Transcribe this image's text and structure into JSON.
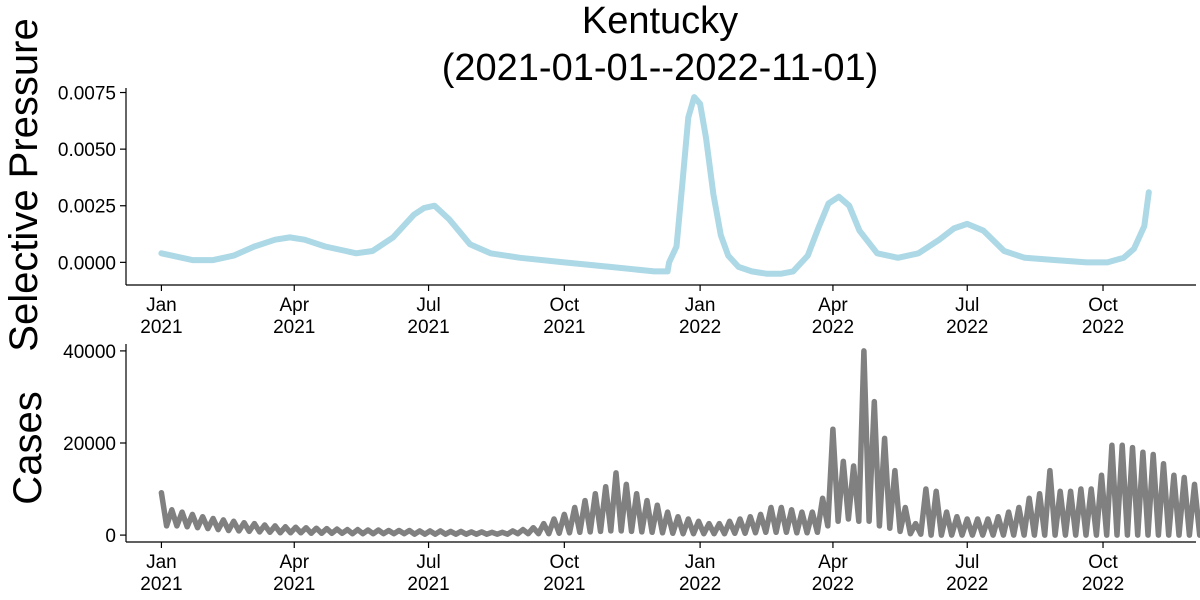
{
  "chart_data": [
    {
      "type": "line",
      "title": "Kentucky",
      "subtitle": "(2021-01-01--2022-11-01)",
      "xlabel": "",
      "ylabel": "Selective Pressure",
      "ylim": [
        -0.001,
        0.0077
      ],
      "xlim": [
        "2020-12-08",
        "2022-12-03"
      ],
      "yticks": [
        "0.0000",
        "0.0025",
        "0.0050",
        "0.0075"
      ],
      "xticks": [
        {
          "date": "2021-01-01",
          "line1": "Jan",
          "line2": "2021"
        },
        {
          "date": "2021-04-01",
          "line1": "Apr",
          "line2": "2021"
        },
        {
          "date": "2021-07-01",
          "line1": "Jul",
          "line2": "2021"
        },
        {
          "date": "2021-10-01",
          "line1": "Oct",
          "line2": "2021"
        },
        {
          "date": "2022-01-01",
          "line1": "Jan",
          "line2": "2022"
        },
        {
          "date": "2022-04-01",
          "line1": "Apr",
          "line2": "2022"
        },
        {
          "date": "2022-07-01",
          "line1": "Jul",
          "line2": "2022"
        },
        {
          "date": "2022-10-01",
          "line1": "Oct",
          "line2": "2022"
        }
      ],
      "color": "#add8e6",
      "grid": false,
      "series": [
        {
          "x": [
            "2021-01-01",
            "2021-01-08",
            "2021-01-22",
            "2021-02-05",
            "2021-02-19",
            "2021-03-05",
            "2021-03-19",
            "2021-03-29",
            "2021-04-08",
            "2021-04-22",
            "2021-05-06",
            "2021-05-13",
            "2021-05-24",
            "2021-06-07",
            "2021-06-21",
            "2021-06-28",
            "2021-07-05",
            "2021-07-15",
            "2021-07-29",
            "2021-08-12",
            "2021-09-01",
            "2021-10-01",
            "2021-11-01",
            "2021-12-01",
            "2021-12-10",
            "2021-12-11",
            "2021-12-16",
            "2021-12-20",
            "2021-12-24",
            "2021-12-28",
            "2022-01-01",
            "2022-01-05",
            "2022-01-10",
            "2022-01-15",
            "2022-01-20",
            "2022-01-27",
            "2022-02-05",
            "2022-02-15",
            "2022-02-25",
            "2022-03-05",
            "2022-03-15",
            "2022-03-22",
            "2022-03-29",
            "2022-04-05",
            "2022-04-12",
            "2022-04-19",
            "2022-05-01",
            "2022-05-15",
            "2022-05-29",
            "2022-06-12",
            "2022-06-22",
            "2022-07-01",
            "2022-07-12",
            "2022-07-26",
            "2022-08-09",
            "2022-08-30",
            "2022-09-20",
            "2022-10-04",
            "2022-10-15",
            "2022-10-22",
            "2022-10-29",
            "2022-11-01"
          ],
          "y": [
            0.0004,
            0.0003,
            0.0001,
            0.0001,
            0.0003,
            0.0007,
            0.001,
            0.0011,
            0.001,
            0.0007,
            0.0005,
            0.0004,
            0.0005,
            0.0011,
            0.0021,
            0.0024,
            0.0025,
            0.0019,
            0.0008,
            0.0004,
            0.0002,
            0.0,
            -0.0002,
            -0.0004,
            -0.0004,
            0.0,
            0.0007,
            0.0035,
            0.0064,
            0.0073,
            0.007,
            0.0055,
            0.003,
            0.0012,
            0.0003,
            -0.0002,
            -0.0004,
            -0.0005,
            -0.0005,
            -0.0004,
            0.0003,
            0.0015,
            0.0026,
            0.0029,
            0.0025,
            0.0014,
            0.0004,
            0.0002,
            0.0004,
            0.001,
            0.0015,
            0.0017,
            0.0014,
            0.0005,
            0.0002,
            0.0001,
            0.0,
            0.0,
            0.0002,
            0.0006,
            0.0016,
            0.0031
          ]
        }
      ]
    },
    {
      "type": "line",
      "title": "",
      "xlabel": "",
      "ylabel": "Cases",
      "ylim": [
        -1500,
        41500
      ],
      "xlim": [
        "2020-12-08",
        "2022-12-03"
      ],
      "yticks": [
        "0",
        "20000",
        "40000"
      ],
      "xticks": [
        {
          "date": "2021-01-01",
          "line1": "Jan",
          "line2": "2021"
        },
        {
          "date": "2021-04-01",
          "line1": "Apr",
          "line2": "2021"
        },
        {
          "date": "2021-07-01",
          "line1": "Jul",
          "line2": "2021"
        },
        {
          "date": "2021-10-01",
          "line1": "Oct",
          "line2": "2021"
        },
        {
          "date": "2022-01-01",
          "line1": "Jan",
          "line2": "2022"
        },
        {
          "date": "2022-04-01",
          "line1": "Apr",
          "line2": "2022"
        },
        {
          "date": "2022-07-01",
          "line1": "Jul",
          "line2": "2022"
        },
        {
          "date": "2022-10-01",
          "line1": "Oct",
          "line2": "2022"
        }
      ],
      "color": "#808080",
      "grid": false,
      "series": [
        {
          "start_date": "2021-01-01",
          "frequency": "weekly",
          "peaks": [
            9200,
            5500,
            5000,
            4500,
            4000,
            3600,
            3300,
            3000,
            2700,
            2500,
            2200,
            2000,
            1800,
            1700,
            1600,
            1500,
            1400,
            1300,
            1200,
            1200,
            1100,
            1100,
            1000,
            1000,
            1000,
            900,
            900,
            900,
            800,
            800,
            700,
            700,
            600,
            600,
            900,
            1200,
            1600,
            2500,
            3500,
            4500,
            6000,
            7500,
            9000,
            10500,
            13500,
            11000,
            9000,
            7500,
            6500,
            5000,
            4000,
            3500,
            3000,
            2500,
            2500,
            3000,
            3500,
            4000,
            4500,
            6000,
            6000,
            5500,
            5000,
            5000,
            8000,
            23000,
            16000,
            15000,
            40000,
            29000,
            21000,
            14000,
            6000,
            2500,
            10000,
            9500,
            5000,
            4000,
            3500,
            3500,
            3500,
            4000,
            5000,
            6000,
            8000,
            9000,
            14000,
            9500,
            9500,
            10000,
            10000,
            13000,
            19500,
            19500,
            19000,
            18000,
            17500,
            15500,
            13000,
            12500,
            11000,
            9500,
            9500,
            9500,
            9000,
            6000,
            5500,
            8000
          ],
          "troughs": [
            2000,
            2000,
            1800,
            1600,
            1400,
            1200,
            1000,
            900,
            800,
            700,
            600,
            500,
            500,
            500,
            400,
            400,
            400,
            400,
            300,
            300,
            300,
            300,
            300,
            300,
            200,
            200,
            200,
            200,
            200,
            200,
            200,
            200,
            200,
            200,
            300,
            300,
            300,
            300,
            400,
            500,
            600,
            700,
            800,
            900,
            900,
            800,
            700,
            600,
            500,
            400,
            300,
            300,
            300,
            300,
            300,
            400,
            400,
            500,
            600,
            600,
            600,
            500,
            500,
            600,
            2000,
            3000,
            3500,
            3000,
            3000,
            2000,
            1500,
            800,
            300,
            200,
            0,
            0,
            0,
            0,
            0,
            0,
            0,
            0,
            0,
            0,
            0,
            0,
            0,
            0,
            0,
            0,
            0,
            0,
            0,
            0,
            0,
            0,
            0,
            0,
            0,
            0,
            0,
            0,
            0,
            0,
            0,
            0
          ]
        }
      ]
    }
  ]
}
